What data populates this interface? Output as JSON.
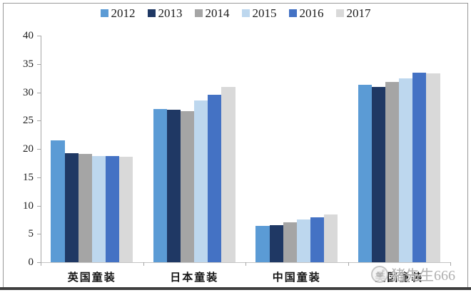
{
  "chart_data": {
    "type": "bar",
    "title": "",
    "xlabel": "",
    "ylabel": "",
    "categories": [
      "英国童装",
      "日本童装",
      "中国童装",
      "美国童装"
    ],
    "series": [
      {
        "name": "2012",
        "color": "#5B9BD5",
        "values": [
          21.5,
          27.1,
          6.4,
          31.3
        ]
      },
      {
        "name": "2013",
        "color": "#1F3864",
        "values": [
          19.2,
          26.9,
          6.6,
          30.9
        ]
      },
      {
        "name": "2014",
        "color": "#A5A5A5",
        "values": [
          19.1,
          26.7,
          7.0,
          31.8
        ]
      },
      {
        "name": "2015",
        "color": "#BDD7EE",
        "values": [
          18.7,
          28.5,
          7.5,
          32.5
        ]
      },
      {
        "name": "2016",
        "color": "#4472C4",
        "values": [
          18.7,
          29.5,
          7.9,
          33.4
        ]
      },
      {
        "name": "2017",
        "color": "#D9D9D9",
        "values": [
          18.6,
          30.9,
          8.4,
          33.3
        ]
      }
    ],
    "ylim": [
      0,
      40
    ],
    "yticks": [
      0,
      5,
      10,
      15,
      20,
      25,
      30,
      35,
      40
    ],
    "grid": false,
    "legend_position": "top"
  },
  "watermark": {
    "text": "猪先生666"
  }
}
